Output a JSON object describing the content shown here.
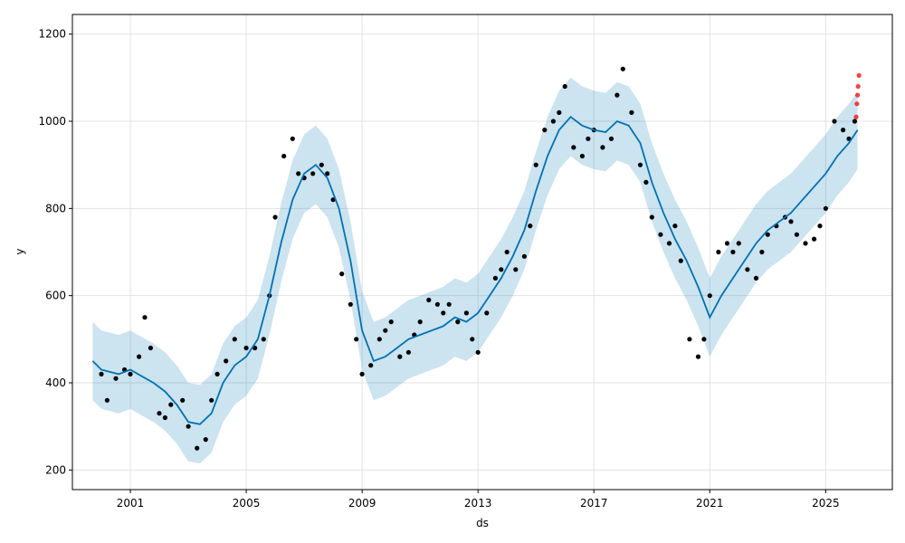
{
  "chart_data": {
    "type": "scatter",
    "title": "",
    "xlabel": "ds",
    "ylabel": "y",
    "xlim": [
      1999.0,
      2027.3
    ],
    "ylim": [
      155,
      1245
    ],
    "x_ticks": [
      2001,
      2005,
      2009,
      2013,
      2017,
      2021,
      2025
    ],
    "x_tick_labels": [
      "2001",
      "2005",
      "2009",
      "2013",
      "2017",
      "2021",
      "2025"
    ],
    "y_ticks": [
      200,
      400,
      600,
      800,
      1000,
      1200
    ],
    "y_tick_labels": [
      "200",
      "400",
      "600",
      "800",
      "1000",
      "1200"
    ],
    "grid": true,
    "legend": "none",
    "colors": {
      "observed": "#000000",
      "forecast_line": "#0072B2",
      "uncertainty_band": "#0072B2",
      "recent_points": "#ff0000"
    },
    "series": [
      {
        "kind": "observed",
        "x": [
          2000.0,
          2000.2,
          2000.5,
          2000.8,
          2001.0,
          2001.3,
          2001.5,
          2001.7,
          2002.0,
          2002.2,
          2002.4,
          2002.8,
          2003.0,
          2003.3,
          2003.6,
          2003.8,
          2004.0,
          2004.3,
          2004.6,
          2005.0,
          2005.3,
          2005.6,
          2005.8,
          2006.0,
          2006.3,
          2006.6,
          2006.8,
          2007.0,
          2007.3,
          2007.6,
          2007.8,
          2008.0,
          2008.3,
          2008.6,
          2008.8,
          2009.0,
          2009.3,
          2009.6,
          2009.8,
          2010.0,
          2010.3,
          2010.6,
          2010.8,
          2011.0,
          2011.3,
          2011.6,
          2011.8,
          2012.0,
          2012.3,
          2012.6,
          2012.8,
          2013.0,
          2013.3,
          2013.6,
          2013.8,
          2014.0,
          2014.3,
          2014.6,
          2014.8,
          2015.0,
          2015.3,
          2015.6,
          2015.8,
          2016.0,
          2016.3,
          2016.6,
          2016.8,
          2017.0,
          2017.3,
          2017.6,
          2017.8,
          2018.0,
          2018.3,
          2018.6,
          2018.8,
          2019.0,
          2019.3,
          2019.6,
          2019.8,
          2020.0,
          2020.3,
          2020.6,
          2020.8,
          2021.0,
          2021.3,
          2021.6,
          2021.8,
          2022.0,
          2022.3,
          2022.6,
          2022.8,
          2023.0,
          2023.3,
          2023.6,
          2023.8,
          2024.0,
          2024.3,
          2024.6,
          2024.8,
          2025.0,
          2025.3,
          2025.6,
          2025.8,
          2026.0
        ],
        "y": [
          420,
          360,
          410,
          430,
          420,
          460,
          550,
          480,
          330,
          320,
          350,
          360,
          300,
          250,
          270,
          360,
          420,
          450,
          500,
          480,
          480,
          500,
          600,
          780,
          920,
          960,
          880,
          870,
          880,
          900,
          880,
          820,
          650,
          580,
          500,
          420,
          440,
          500,
          520,
          540,
          460,
          470,
          510,
          540,
          590,
          580,
          560,
          580,
          540,
          560,
          500,
          470,
          560,
          640,
          660,
          700,
          660,
          690,
          760,
          900,
          980,
          1000,
          1020,
          1080,
          940,
          920,
          960,
          980,
          940,
          960,
          1060,
          1120,
          1020,
          900,
          860,
          780,
          740,
          720,
          760,
          680,
          500,
          460,
          500,
          600,
          700,
          720,
          700,
          720,
          660,
          640,
          700,
          740,
          760,
          780,
          770,
          740,
          720,
          730,
          760,
          800,
          1000,
          980,
          960,
          1000
        ]
      },
      {
        "kind": "forecast",
        "x": [
          1999.7,
          2000.0,
          2000.3,
          2000.6,
          2001.0,
          2001.4,
          2001.8,
          2002.2,
          2002.6,
          2003.0,
          2003.4,
          2003.8,
          2004.2,
          2004.6,
          2005.0,
          2005.4,
          2005.8,
          2006.2,
          2006.6,
          2007.0,
          2007.4,
          2007.8,
          2008.2,
          2008.6,
          2009.0,
          2009.4,
          2009.8,
          2010.2,
          2010.6,
          2011.0,
          2011.4,
          2011.8,
          2012.2,
          2012.6,
          2013.0,
          2013.4,
          2013.8,
          2014.2,
          2014.6,
          2015.0,
          2015.4,
          2015.8,
          2016.2,
          2016.6,
          2017.0,
          2017.4,
          2017.8,
          2018.2,
          2018.6,
          2019.0,
          2019.4,
          2019.8,
          2020.2,
          2020.6,
          2021.0,
          2021.4,
          2021.8,
          2022.2,
          2022.6,
          2023.0,
          2023.4,
          2023.8,
          2024.2,
          2024.6,
          2025.0,
          2025.4,
          2025.8,
          2026.1
        ],
        "y": [
          450,
          430,
          425,
          420,
          430,
          415,
          400,
          380,
          350,
          310,
          305,
          330,
          400,
          440,
          460,
          500,
          600,
          720,
          820,
          880,
          900,
          870,
          800,
          680,
          520,
          450,
          460,
          480,
          500,
          510,
          520,
          530,
          550,
          540,
          560,
          600,
          640,
          690,
          750,
          840,
          920,
          980,
          1010,
          990,
          980,
          975,
          1000,
          990,
          950,
          860,
          790,
          730,
          680,
          620,
          550,
          600,
          640,
          680,
          720,
          750,
          770,
          790,
          820,
          850,
          880,
          920,
          950,
          980
        ]
      },
      {
        "kind": "uncertainty_upper",
        "x": [
          1999.7,
          2000.0,
          2000.3,
          2000.6,
          2001.0,
          2001.4,
          2001.8,
          2002.2,
          2002.6,
          2003.0,
          2003.4,
          2003.8,
          2004.2,
          2004.6,
          2005.0,
          2005.4,
          2005.8,
          2006.2,
          2006.6,
          2007.0,
          2007.4,
          2007.8,
          2008.2,
          2008.6,
          2009.0,
          2009.4,
          2009.8,
          2010.2,
          2010.6,
          2011.0,
          2011.4,
          2011.8,
          2012.2,
          2012.6,
          2013.0,
          2013.4,
          2013.8,
          2014.2,
          2014.6,
          2015.0,
          2015.4,
          2015.8,
          2016.2,
          2016.6,
          2017.0,
          2017.4,
          2017.8,
          2018.2,
          2018.6,
          2019.0,
          2019.4,
          2019.8,
          2020.2,
          2020.6,
          2021.0,
          2021.4,
          2021.8,
          2022.2,
          2022.6,
          2023.0,
          2023.4,
          2023.8,
          2024.2,
          2024.6,
          2025.0,
          2025.4,
          2025.8,
          2026.1
        ],
        "y": [
          540,
          520,
          515,
          510,
          520,
          505,
          490,
          470,
          440,
          400,
          395,
          420,
          490,
          530,
          550,
          590,
          690,
          810,
          910,
          970,
          990,
          960,
          890,
          770,
          610,
          540,
          550,
          570,
          590,
          600,
          610,
          620,
          640,
          630,
          650,
          690,
          730,
          780,
          840,
          930,
          1010,
          1070,
          1100,
          1080,
          1070,
          1065,
          1090,
          1080,
          1040,
          950,
          880,
          820,
          770,
          710,
          640,
          690,
          730,
          770,
          810,
          840,
          860,
          880,
          910,
          940,
          970,
          1010,
          1040,
          1070
        ]
      },
      {
        "kind": "uncertainty_lower",
        "x": [
          1999.7,
          2000.0,
          2000.3,
          2000.6,
          2001.0,
          2001.4,
          2001.8,
          2002.2,
          2002.6,
          2003.0,
          2003.4,
          2003.8,
          2004.2,
          2004.6,
          2005.0,
          2005.4,
          2005.8,
          2006.2,
          2006.6,
          2007.0,
          2007.4,
          2007.8,
          2008.2,
          2008.6,
          2009.0,
          2009.4,
          2009.8,
          2010.2,
          2010.6,
          2011.0,
          2011.4,
          2011.8,
          2012.2,
          2012.6,
          2013.0,
          2013.4,
          2013.8,
          2014.2,
          2014.6,
          2015.0,
          2015.4,
          2015.8,
          2016.2,
          2016.6,
          2017.0,
          2017.4,
          2017.8,
          2018.2,
          2018.6,
          2019.0,
          2019.4,
          2019.8,
          2020.2,
          2020.6,
          2021.0,
          2021.4,
          2021.8,
          2022.2,
          2022.6,
          2023.0,
          2023.4,
          2023.8,
          2024.2,
          2024.6,
          2025.0,
          2025.4,
          2025.8,
          2026.1
        ],
        "y": [
          360,
          340,
          335,
          330,
          340,
          325,
          310,
          290,
          260,
          220,
          215,
          240,
          310,
          350,
          370,
          410,
          510,
          630,
          730,
          790,
          810,
          780,
          710,
          590,
          430,
          360,
          370,
          390,
          410,
          420,
          430,
          440,
          460,
          450,
          470,
          510,
          550,
          600,
          660,
          750,
          830,
          890,
          920,
          900,
          890,
          885,
          910,
          900,
          860,
          770,
          700,
          640,
          590,
          530,
          460,
          510,
          550,
          590,
          630,
          660,
          680,
          700,
          730,
          760,
          790,
          830,
          860,
          890
        ]
      },
      {
        "kind": "recent",
        "x": [
          2026.05,
          2026.08,
          2026.1,
          2026.12,
          2026.15
        ],
        "y": [
          1010,
          1040,
          1060,
          1080,
          1105
        ]
      }
    ]
  }
}
